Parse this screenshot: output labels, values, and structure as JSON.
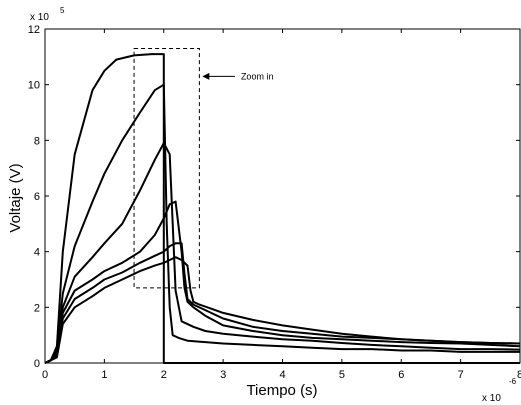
{
  "chart_data": {
    "type": "line",
    "title": "",
    "xlabel": "Tiempo (s)",
    "ylabel": "Voltaje (V)",
    "x_multiplier": "x 10",
    "x_exponent": "-6",
    "y_multiplier": "x 10",
    "y_exponent": "5",
    "xlim": [
      0,
      8
    ],
    "ylim": [
      0,
      12
    ],
    "x_ticks": [
      "0",
      "1",
      "2",
      "3",
      "4",
      "5",
      "6",
      "7",
      "8"
    ],
    "y_ticks": [
      "0",
      "2",
      "4",
      "6",
      "8",
      "10",
      "12"
    ],
    "grid": false,
    "legend": false,
    "line_color": "#000000",
    "annotation": {
      "text": "Zoom in",
      "box_x": [
        1.5,
        2.6
      ],
      "box_y": [
        2.7,
        11.3
      ],
      "arrow_target": [
        2.65,
        10.3
      ],
      "label_at": [
        3.3,
        10.3
      ]
    },
    "series": [
      {
        "x": [
          0,
          0.1,
          0.2,
          0.3,
          0.5,
          0.8,
          1.0,
          1.2,
          1.5,
          1.8,
          2.0,
          2.0,
          2.02,
          8
        ],
        "y": [
          0,
          0.1,
          0.6,
          4.0,
          7.5,
          9.8,
          10.5,
          10.9,
          11.05,
          11.1,
          11.1,
          0.0,
          0.0,
          0.0
        ]
      },
      {
        "x": [
          0,
          0.1,
          0.2,
          0.3,
          0.5,
          0.8,
          1.0,
          1.3,
          1.6,
          1.85,
          2.0,
          2.05,
          2.1,
          2.15,
          2.25,
          2.4,
          2.7,
          3.0,
          3.5,
          4.0,
          4.5,
          5.0,
          5.5,
          6.0,
          6.5,
          7.0,
          7.5,
          8.0
        ],
        "y": [
          0,
          0.1,
          0.5,
          2.5,
          4.2,
          5.8,
          6.8,
          8.0,
          9.0,
          9.8,
          10.0,
          5.0,
          2.0,
          1.0,
          0.9,
          0.8,
          0.75,
          0.7,
          0.65,
          0.6,
          0.55,
          0.5,
          0.5,
          0.45,
          0.45,
          0.4,
          0.4,
          0.4
        ]
      },
      {
        "x": [
          0,
          0.1,
          0.2,
          0.3,
          0.5,
          0.8,
          1.0,
          1.3,
          1.6,
          1.85,
          2.0,
          2.1,
          2.15,
          2.2,
          2.3,
          2.5,
          2.7,
          3.0,
          3.5,
          4.0,
          4.5,
          5.0,
          5.5,
          6.0,
          6.5,
          7.0,
          7.5,
          8.0
        ],
        "y": [
          0,
          0.1,
          0.4,
          2.0,
          3.1,
          3.8,
          4.3,
          5.0,
          6.2,
          7.3,
          7.9,
          7.5,
          5.0,
          2.6,
          1.5,
          1.3,
          1.15,
          1.05,
          0.95,
          0.85,
          0.8,
          0.72,
          0.65,
          0.6,
          0.55,
          0.5,
          0.5,
          0.48
        ]
      },
      {
        "x": [
          0,
          0.1,
          0.2,
          0.3,
          0.5,
          0.8,
          1.0,
          1.3,
          1.6,
          1.85,
          2.0,
          2.1,
          2.2,
          2.3,
          2.35,
          2.4,
          2.5,
          2.7,
          3.0,
          3.5,
          4.0,
          4.5,
          5.0,
          5.5,
          6.0,
          6.5,
          7.0,
          7.5,
          8.0
        ],
        "y": [
          0,
          0.1,
          0.3,
          1.8,
          2.6,
          3.0,
          3.3,
          3.6,
          4.0,
          4.6,
          5.2,
          5.7,
          5.8,
          4.0,
          2.7,
          2.2,
          2.0,
          1.7,
          1.35,
          1.15,
          1.0,
          0.9,
          0.85,
          0.8,
          0.75,
          0.72,
          0.7,
          0.65,
          0.6
        ]
      },
      {
        "x": [
          0,
          0.1,
          0.2,
          0.3,
          0.5,
          0.8,
          1.0,
          1.3,
          1.6,
          1.85,
          2.0,
          2.1,
          2.2,
          2.3,
          2.35,
          2.4,
          2.5,
          2.7,
          3.0,
          3.5,
          4.0,
          4.5,
          5.0,
          5.5,
          6.0,
          6.5,
          7.0,
          7.5,
          8.0
        ],
        "y": [
          0,
          0.1,
          0.3,
          1.6,
          2.3,
          2.7,
          3.0,
          3.25,
          3.6,
          3.85,
          4.0,
          4.2,
          4.3,
          4.3,
          3.2,
          2.3,
          2.1,
          1.9,
          1.6,
          1.3,
          1.15,
          1.05,
          0.95,
          0.9,
          0.85,
          0.8,
          0.75,
          0.72,
          0.7
        ]
      },
      {
        "x": [
          0,
          0.1,
          0.2,
          0.3,
          0.5,
          0.8,
          1.0,
          1.3,
          1.6,
          1.85,
          2.0,
          2.1,
          2.2,
          2.3,
          2.4,
          2.45,
          2.5,
          2.6,
          2.8,
          3.0,
          3.5,
          4.0,
          4.5,
          5.0,
          5.5,
          6.0,
          6.5,
          7.0,
          7.5,
          8.0
        ],
        "y": [
          0,
          0.1,
          0.2,
          1.4,
          2.0,
          2.4,
          2.7,
          3.0,
          3.3,
          3.5,
          3.6,
          3.7,
          3.8,
          3.7,
          3.5,
          2.6,
          2.2,
          2.1,
          1.95,
          1.8,
          1.55,
          1.35,
          1.2,
          1.05,
          0.95,
          0.85,
          0.8,
          0.75,
          0.72,
          0.7
        ]
      }
    ]
  }
}
